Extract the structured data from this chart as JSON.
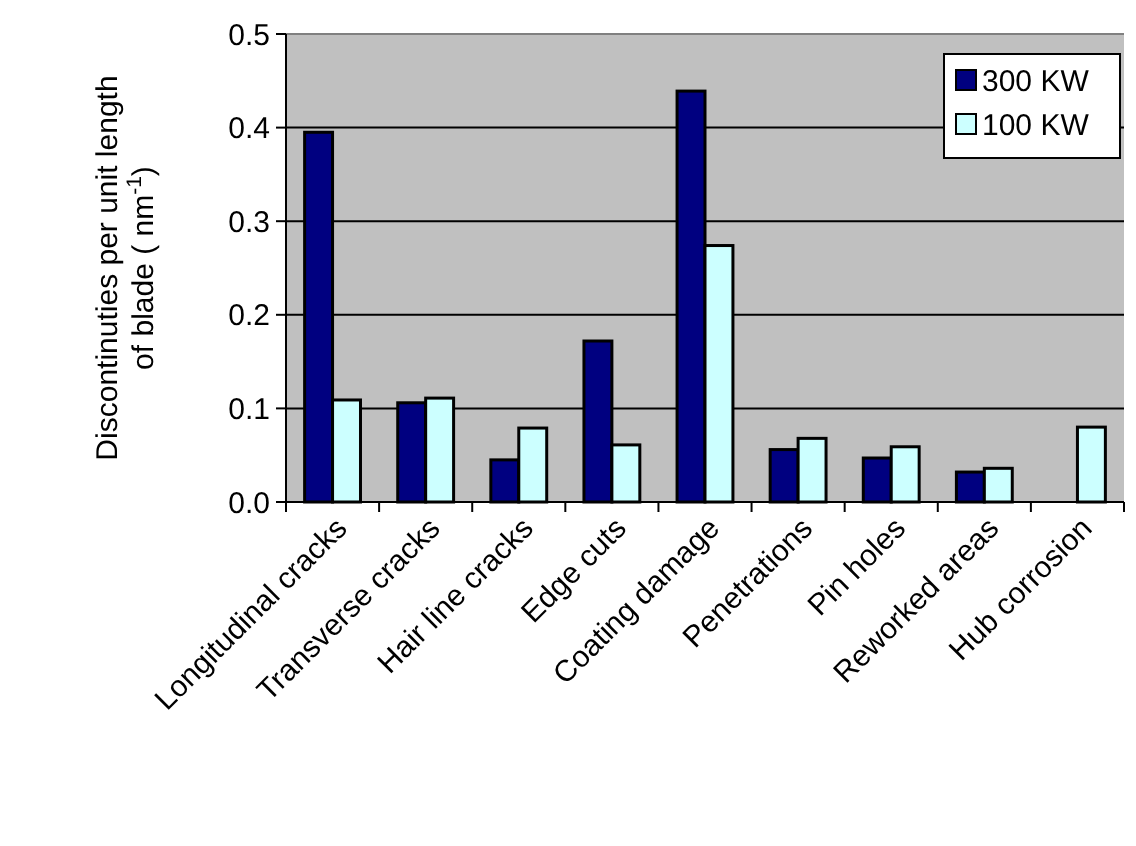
{
  "chart_data": {
    "type": "bar",
    "ylabel": "Discontinuties per unit length of blade ( nm$^{-1}$)",
    "categories": [
      "Longitudinal cracks",
      "Transverse cracks",
      "Hair line cracks",
      "Edge cuts",
      "Coating damage",
      "Penetrations",
      "Pin holes",
      "Reworked areas",
      "Hub corrosion"
    ],
    "series": [
      {
        "name": "300 KW",
        "color": "#000080",
        "values": [
          0.395,
          0.106,
          0.045,
          0.172,
          0.439,
          0.056,
          0.047,
          0.032,
          null
        ]
      },
      {
        "name": "100 KW",
        "color": "#ccffff",
        "values": [
          0.109,
          0.111,
          0.079,
          0.061,
          0.274,
          0.068,
          0.059,
          0.036,
          0.08
        ]
      }
    ],
    "ylim": [
      0,
      0.5
    ],
    "yticks": [
      {
        "value": 0,
        "label": "0.0"
      },
      0.1,
      0.2,
      0.3,
      0.4,
      0.5
    ],
    "grid": "y",
    "legend": "top right"
  }
}
